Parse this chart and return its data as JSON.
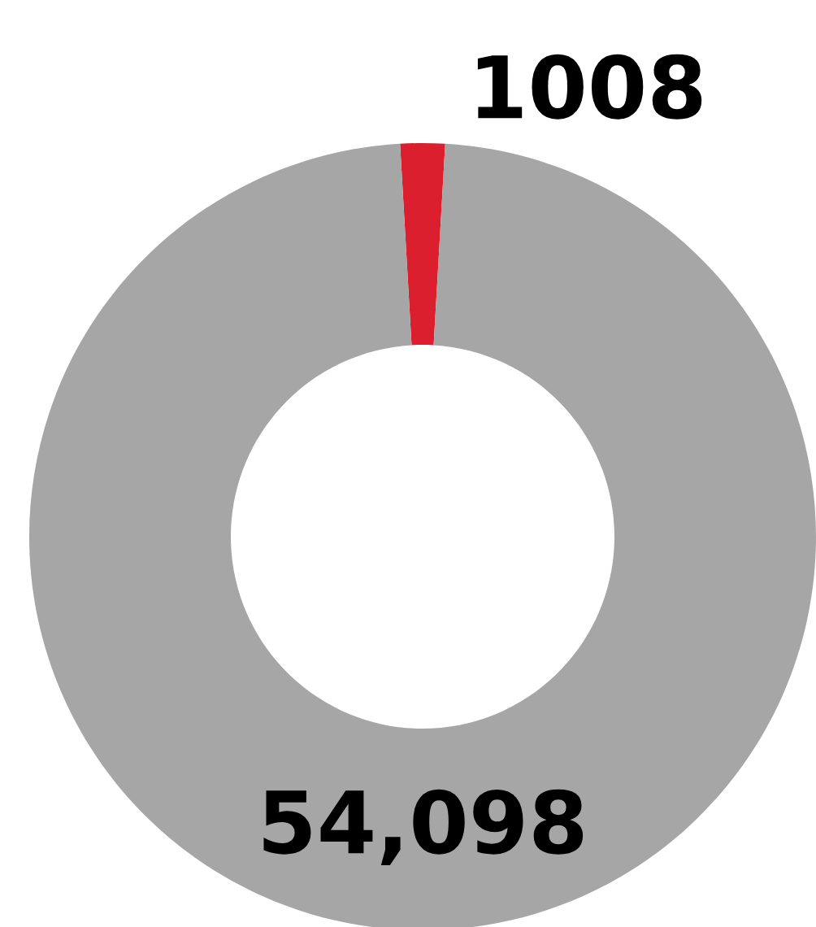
{
  "chart_data": {
    "type": "donut",
    "categories": [
      null,
      null
    ],
    "values": [
      1008,
      54098
    ],
    "colors": [
      "#dc1f2e",
      "#a6a6a6"
    ],
    "value_labels": [
      "1008",
      "54,098"
    ]
  }
}
